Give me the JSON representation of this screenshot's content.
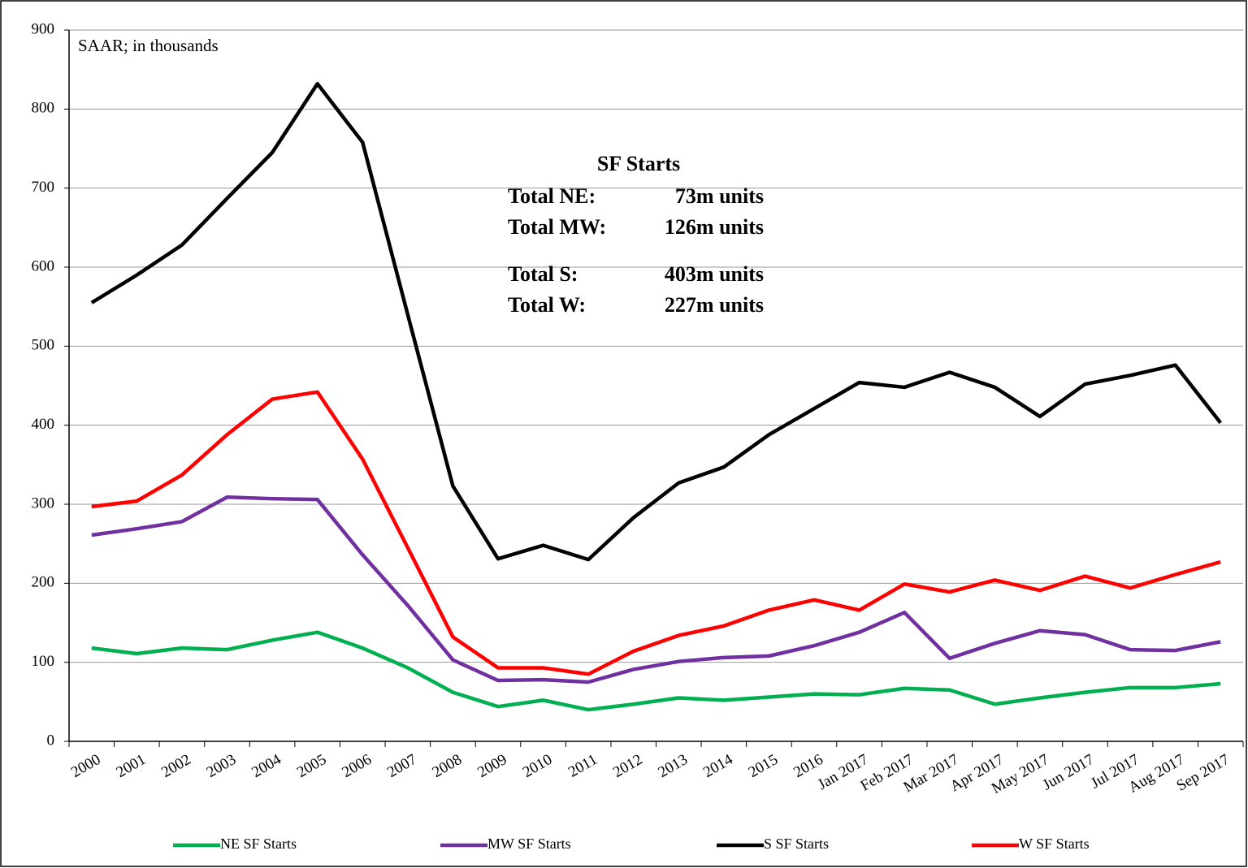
{
  "chart_data": {
    "type": "line",
    "note": "SAAR; in thousands",
    "box_title": "SF Starts",
    "box_lines": [
      [
        "Total NE:",
        "73m units"
      ],
      [
        "Total MW:",
        "126m units"
      ],
      [
        "Total S:",
        "403m units"
      ],
      [
        "Total W:",
        "227m units"
      ]
    ],
    "categories": [
      "2000",
      "2001",
      "2002",
      "2003",
      "2004",
      "2005",
      "2006",
      "2007",
      "2008",
      "2009",
      "2010",
      "2011",
      "2012",
      "2013",
      "2014",
      "2015",
      "2016",
      "Jan 2017",
      "Feb 2017",
      "Mar 2017",
      "Apr 2017",
      "May 2017",
      "Jun 2017",
      "Jul 2017",
      "Aug 2017",
      "Sep 2017"
    ],
    "series": [
      {
        "name": "NE SF Starts",
        "color": "#00b050",
        "values": [
          118,
          111,
          118,
          116,
          128,
          138,
          118,
          93,
          62,
          44,
          52,
          40,
          47,
          55,
          52,
          56,
          60,
          59,
          67,
          65,
          47,
          55,
          62,
          68,
          68,
          73
        ]
      },
      {
        "name": "MW SF Starts",
        "color": "#7030a0",
        "values": [
          261,
          269,
          278,
          309,
          307,
          306,
          236,
          172,
          103,
          77,
          78,
          75,
          91,
          101,
          106,
          108,
          121,
          138,
          163,
          105,
          124,
          140,
          135,
          116,
          115,
          126
        ]
      },
      {
        "name": "S SF Starts",
        "color": "#000000",
        "values": [
          555,
          590,
          628,
          687,
          745,
          832,
          758,
          540,
          323,
          231,
          248,
          230,
          283,
          327,
          347,
          388,
          421,
          454,
          448,
          467,
          448,
          411,
          452,
          463,
          476,
          403
        ]
      },
      {
        "name": "W SF Starts",
        "color": "#ff0000",
        "values": [
          297,
          304,
          337,
          388,
          433,
          442,
          357,
          245,
          132,
          93,
          93,
          85,
          114,
          134,
          146,
          166,
          179,
          166,
          199,
          189,
          204,
          191,
          209,
          194,
          211,
          227
        ]
      }
    ],
    "ylim": [
      0,
      900
    ],
    "yticks": [
      0,
      100,
      200,
      300,
      400,
      500,
      600,
      700,
      800,
      900
    ],
    "grid": true,
    "legend": "bottom"
  }
}
